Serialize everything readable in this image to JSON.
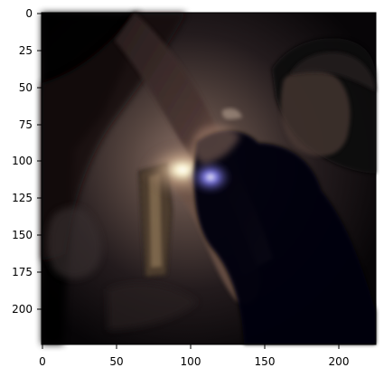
{
  "axes": {
    "x_ticks": [
      "0",
      "50",
      "100",
      "150",
      "200"
    ],
    "y_ticks": [
      "0",
      "25",
      "50",
      "75",
      "100",
      "125",
      "150",
      "175",
      "200"
    ]
  },
  "image": {
    "description_icon": "photo-dark-scene-with-flashlight",
    "colors": {
      "shadow": "#0b0709",
      "wall": "#5c4a44",
      "light": "#fff6d5",
      "blue_light": "#6f67ff",
      "skin_highlight": "#c8a889"
    }
  }
}
